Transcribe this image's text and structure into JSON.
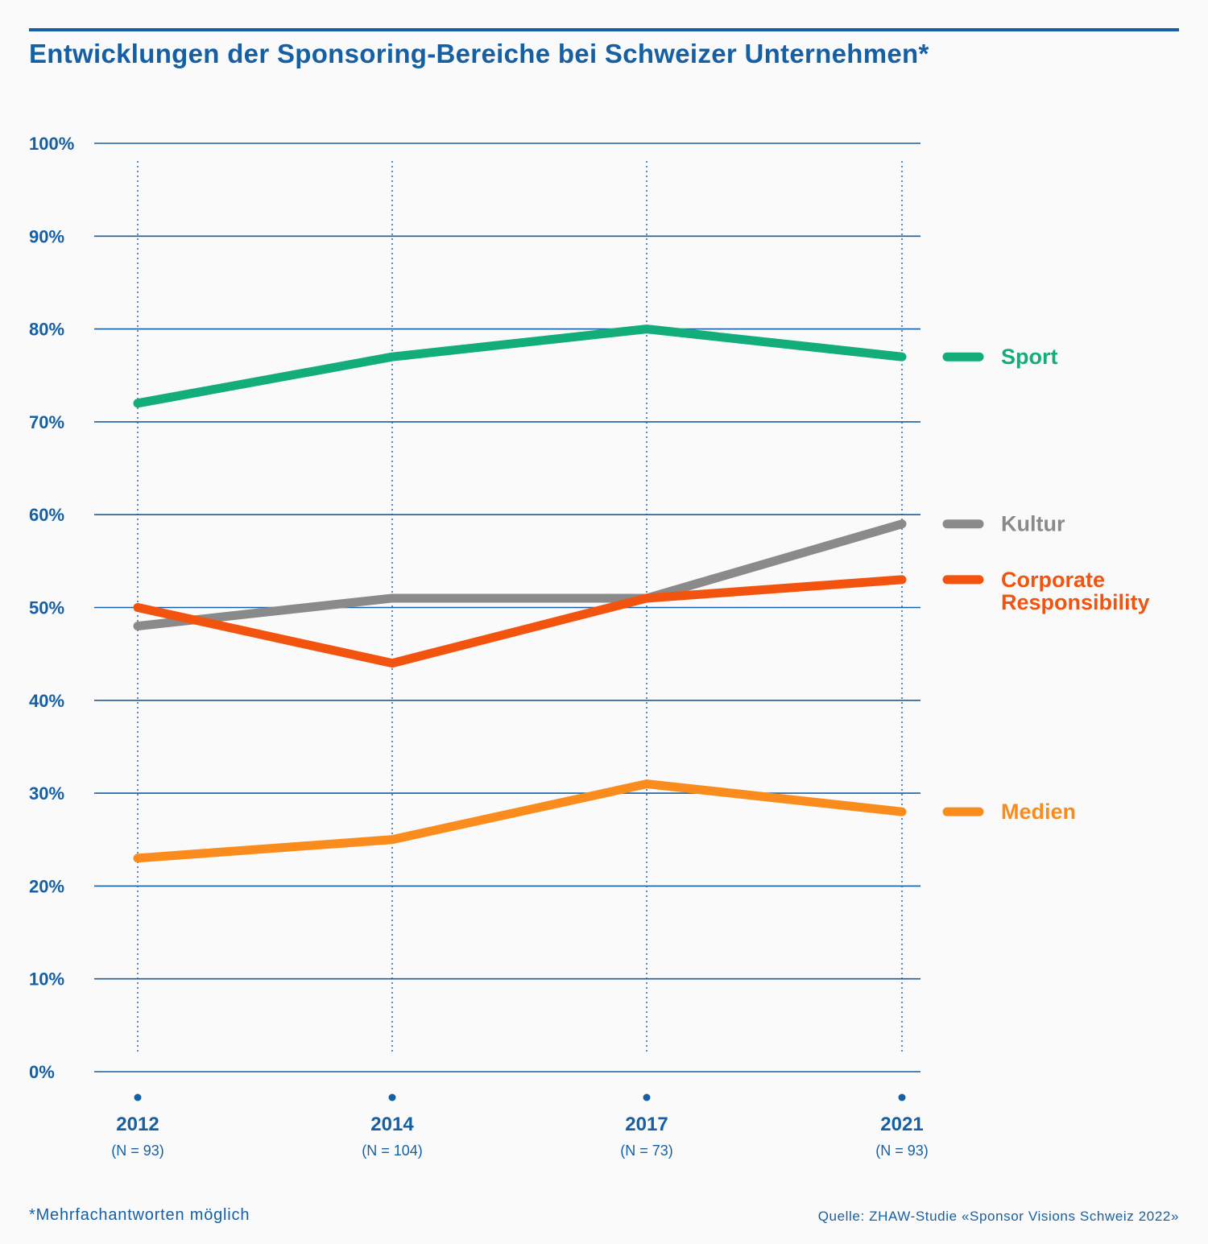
{
  "header": {
    "title": "Entwicklungen der Sponsoring-Bereiche bei Schweizer Unternehmen*"
  },
  "footer": {
    "note": "*Mehrfachantworten möglich",
    "source": "Quelle: ZHAW-Studie «Sponsor Visions Schweiz 2022»"
  },
  "colors": {
    "accent": "#1560a4",
    "sport": "#13ad7c",
    "kultur": "#8a8a8a",
    "corporate": "#f25410",
    "medien": "#fa8c1e"
  },
  "chart_data": {
    "type": "line",
    "title": "Entwicklungen der Sponsoring-Bereiche bei Schweizer Unternehmen*",
    "x": [
      "2012",
      "2014",
      "2017",
      "2021"
    ],
    "x_sublabels": [
      "(N = 93)",
      "(N = 104)",
      "(N = 73)",
      "(N = 93)"
    ],
    "ylim": [
      0,
      100
    ],
    "y_ticks": [
      0,
      10,
      20,
      30,
      40,
      50,
      60,
      70,
      80,
      90,
      100
    ],
    "y_tick_labels": [
      "0%",
      "10%",
      "20%",
      "30%",
      "40%",
      "50%",
      "60%",
      "70%",
      "80%",
      "90%",
      "100%"
    ],
    "grid": true,
    "legend_position": "right",
    "series": [
      {
        "name": "Sport",
        "label_lines": [
          "Sport"
        ],
        "color": "#13ad7c",
        "values": [
          72,
          77,
          80,
          77
        ]
      },
      {
        "name": "Kultur",
        "label_lines": [
          "Kultur"
        ],
        "color": "#8a8a8a",
        "values": [
          48,
          51,
          51,
          59
        ]
      },
      {
        "name": "Corporate Responsibility",
        "label_lines": [
          "Corporate",
          "Responsibility"
        ],
        "color": "#f25410",
        "values": [
          50,
          44,
          51,
          53
        ]
      },
      {
        "name": "Medien",
        "label_lines": [
          "Medien"
        ],
        "color": "#fa8c1e",
        "values": [
          23,
          25,
          31,
          28
        ]
      }
    ]
  }
}
